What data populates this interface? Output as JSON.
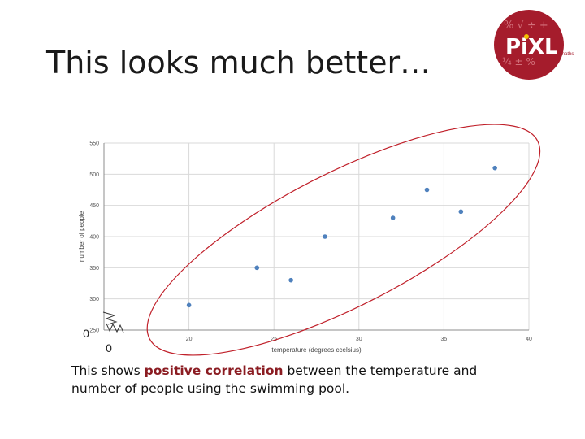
{
  "title": "This looks much better…",
  "logo": {
    "brand": "PiXL",
    "sub": "maths",
    "color": "#a51c2c"
  },
  "caption": {
    "before": "This shows ",
    "highlight": "positive correlation",
    "after": " between the temperature and number of people using the swimming pool."
  },
  "axis_zero_labels": {
    "y": "0",
    "x": "0"
  },
  "chart_data": {
    "type": "scatter",
    "xlabel": "temperature (degrees ccelsius)",
    "ylabel": "number of people",
    "xlim": [
      15,
      40
    ],
    "ylim": [
      250,
      550
    ],
    "xticks": [
      20,
      25,
      30,
      35,
      40
    ],
    "yticks": [
      250,
      300,
      350,
      400,
      450,
      500,
      550
    ],
    "grid": true,
    "axis_break": true,
    "point_color": "#4f81bd",
    "points": [
      {
        "x": 20,
        "y": 290
      },
      {
        "x": 24,
        "y": 350
      },
      {
        "x": 26,
        "y": 330
      },
      {
        "x": 28,
        "y": 400
      },
      {
        "x": 32,
        "y": 430
      },
      {
        "x": 34,
        "y": 475
      },
      {
        "x": 36,
        "y": 440
      },
      {
        "x": 38,
        "y": 510
      }
    ],
    "annotation_ellipse_color": "#c0202a"
  }
}
